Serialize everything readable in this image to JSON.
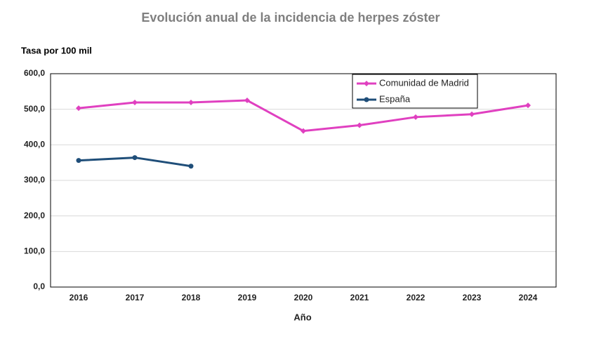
{
  "chart_data": {
    "type": "line",
    "title": "Evolución anual de la incidencia de herpes zóster",
    "y_label": "Tasa por 100 mil",
    "x_label": "Año",
    "categories": [
      "2016",
      "2017",
      "2018",
      "2019",
      "2020",
      "2021",
      "2022",
      "2023",
      "2024"
    ],
    "series": [
      {
        "name": "Comunidad de Madrid",
        "color": "#e040c0",
        "marker": "diamond",
        "values": [
          503,
          519,
          519,
          525,
          439,
          455,
          478,
          486,
          511
        ]
      },
      {
        "name": "España",
        "color": "#1f4e79",
        "marker": "circle",
        "values": [
          356,
          364,
          340,
          null,
          null,
          null,
          null,
          null,
          null
        ]
      }
    ],
    "ylim": [
      0,
      600
    ],
    "yticks": [
      {
        "value": 0,
        "label": "0,0"
      },
      {
        "value": 100,
        "label": "100,0"
      },
      {
        "value": 200,
        "label": "200,0"
      },
      {
        "value": 300,
        "label": "300,0"
      },
      {
        "value": 400,
        "label": "400,0"
      },
      {
        "value": 500,
        "label": "500,0"
      },
      {
        "value": 600,
        "label": "600,0"
      }
    ],
    "grid": true,
    "legend": "top-right"
  }
}
